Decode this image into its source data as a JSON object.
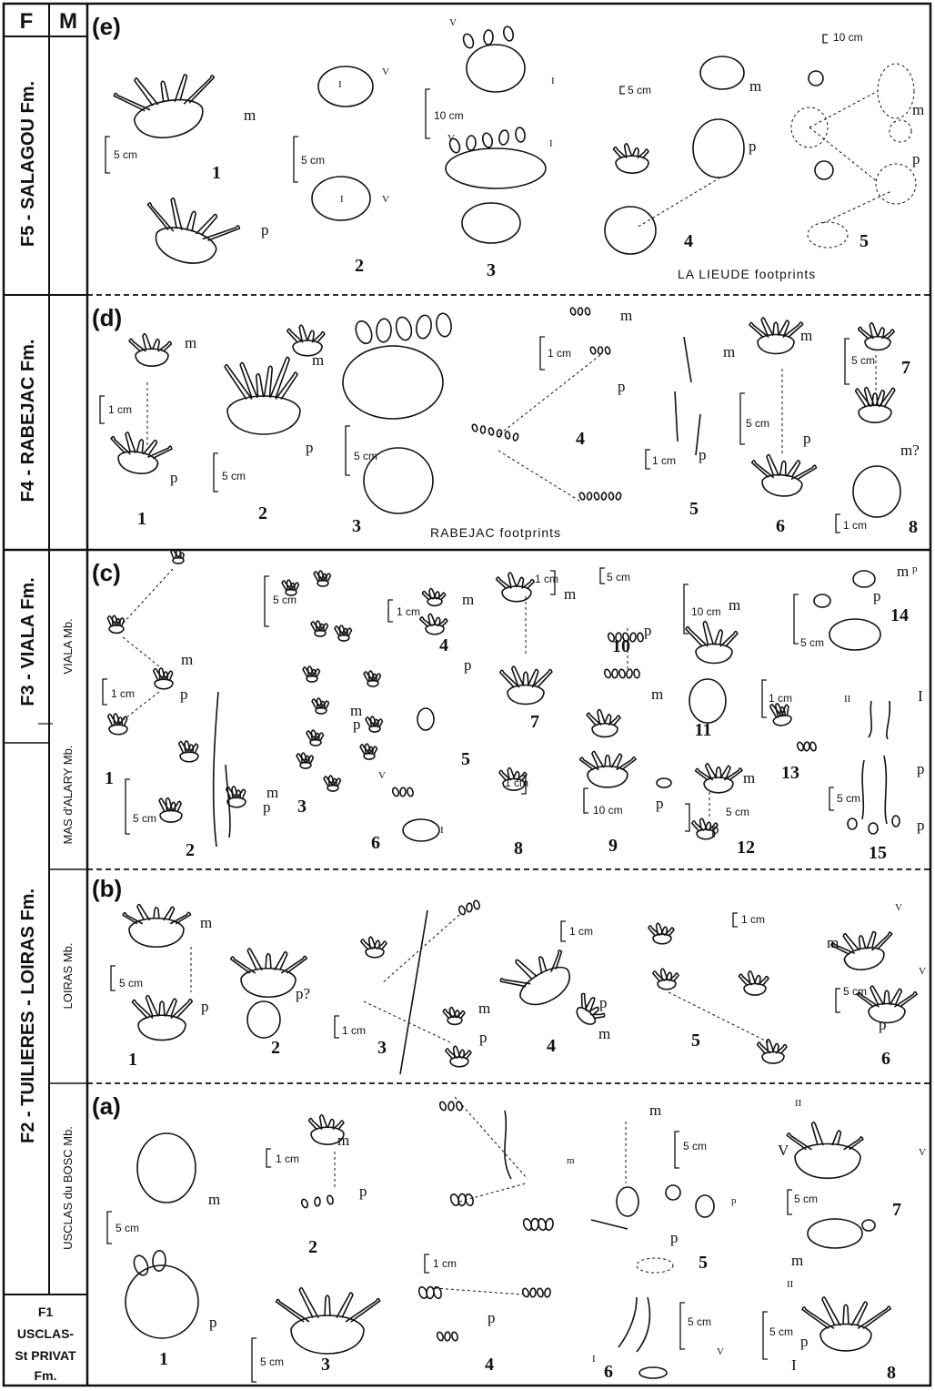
{
  "header": {
    "f": "F",
    "m": "M"
  },
  "formations": {
    "f5": "F5 - SALAGOU  Fm.",
    "f4": "F4 - RABEJAC  Fm.",
    "f3": "F3 - VIALA  Fm.",
    "f2": "F2 -  TUILIERES - LOIRAS   Fm.",
    "f1": [
      "F1",
      "USCLAS-",
      "St PRIVAT",
      "Fm."
    ]
  },
  "members": {
    "viala": "VIALA  Mb.",
    "mas_alary": "MAS d'ALARY Mb.",
    "loiras": "LOIRAS  Mb.",
    "usclas_bosc": "USCLAS du BOSC Mb."
  },
  "panels": {
    "e": {
      "letter": "(e)",
      "caption": "LA  LIEUDE footprints",
      "numbers": [
        "1",
        "2",
        "3",
        "4",
        "5"
      ],
      "labels": [
        "m",
        "p",
        "V",
        "I",
        "I",
        "V",
        "V",
        "I",
        "V",
        "I",
        "m",
        "p",
        "m",
        "p"
      ],
      "scales": [
        "5 cm",
        "5 cm",
        "10 cm",
        "5 cm",
        "10 cm"
      ]
    },
    "d": {
      "letter": "(d)",
      "caption": "RABEJAC footprints",
      "numbers": [
        "1",
        "2",
        "3",
        "4",
        "5",
        "6",
        "7",
        "8"
      ],
      "labels": [
        "m",
        "p",
        "m",
        "p",
        "m",
        "p",
        "m",
        "p",
        "m",
        "p",
        "m?"
      ],
      "scales": [
        "1 cm",
        "5 cm",
        "5 cm",
        "1 cm",
        "1 cm",
        "5 cm",
        "5 cm",
        "1 cm"
      ]
    },
    "c": {
      "letter": "(c)",
      "numbers": [
        "1",
        "2",
        "3",
        "4",
        "5",
        "6",
        "7",
        "8",
        "9",
        "10",
        "11",
        "12",
        "13",
        "14",
        "15"
      ],
      "labels": [
        "m",
        "p",
        "m",
        "p",
        "m",
        "p",
        "m",
        "p",
        "m",
        "m",
        "p",
        "m",
        "p",
        "m",
        "p",
        "m",
        "p",
        "I",
        "p",
        "p",
        "V",
        "I",
        "II",
        "p"
      ],
      "scales": [
        "1 cm",
        "5 cm",
        "5 cm",
        "1 cm",
        "10 cm",
        "1 cm",
        "10 cm",
        "1 cm",
        "1 cm",
        "5 cm",
        "5 cm",
        "5 cm",
        "5 cm"
      ]
    },
    "b": {
      "letter": "(b)",
      "numbers": [
        "1",
        "2",
        "3",
        "4",
        "5",
        "6"
      ],
      "labels": [
        "m",
        "p",
        "p?",
        "m",
        "p",
        "p",
        "m",
        "m",
        "p",
        "V",
        "V"
      ],
      "scales": [
        "5 cm",
        "1 cm",
        "1 cm",
        "1 cm",
        "5 cm"
      ]
    },
    "a": {
      "letter": "(a)",
      "numbers": [
        "1",
        "2",
        "3",
        "4",
        "5",
        "6",
        "7",
        "8"
      ],
      "labels": [
        "m",
        "p",
        "m",
        "p",
        "m",
        "p",
        "m",
        "p",
        "I",
        "V",
        "II",
        "V",
        "V",
        "m",
        "II",
        "p",
        "I",
        "p"
      ],
      "scales": [
        "5 cm",
        "1 cm",
        "5 cm",
        "1 cm",
        "5 cm",
        "5 cm",
        "5 cm",
        "5 cm"
      ]
    }
  }
}
